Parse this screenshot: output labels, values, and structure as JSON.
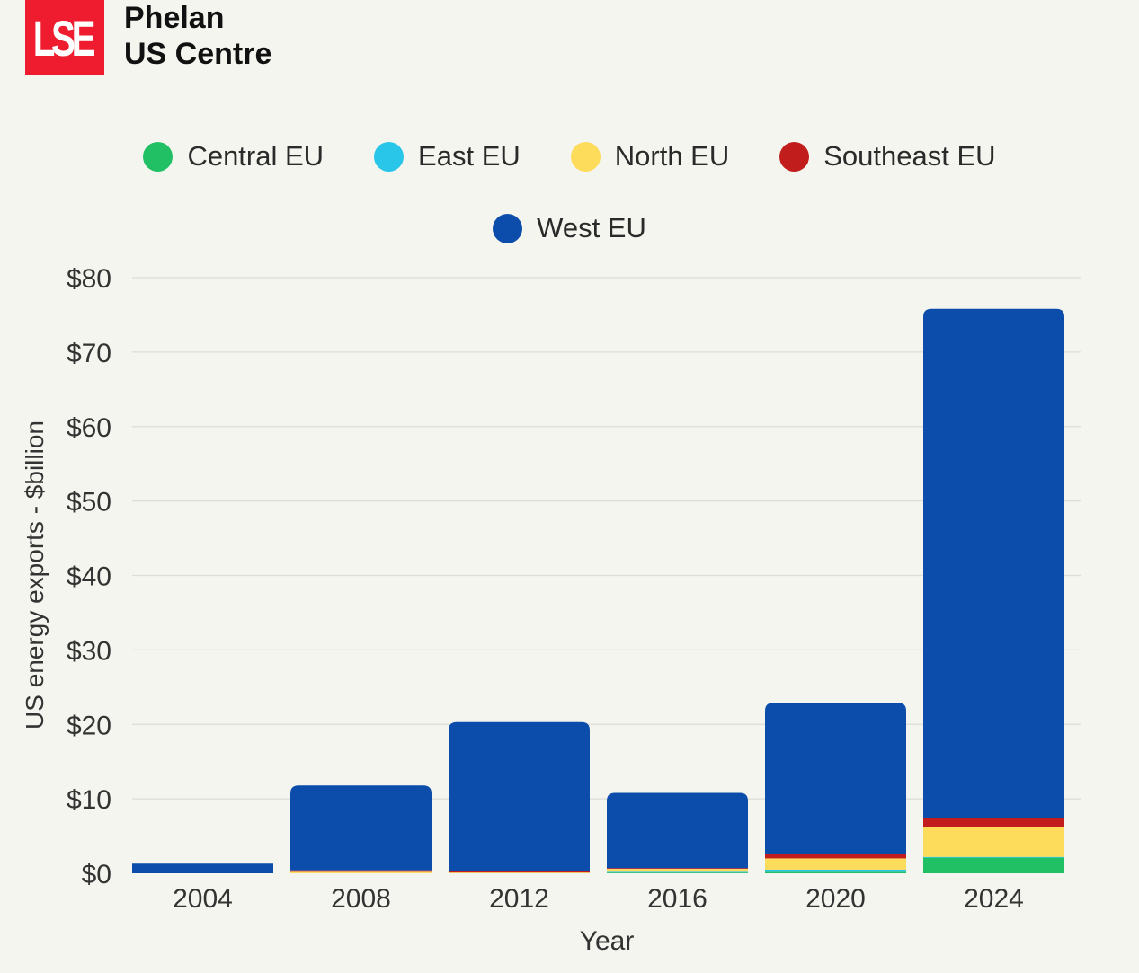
{
  "branding": {
    "logo_text": "LSE",
    "line1": "Phelan",
    "line2": "US Centre"
  },
  "colors": {
    "Central EU": "#22c064",
    "East EU": "#29c6ea",
    "North EU": "#fddc5c",
    "Southeast EU": "#c21d1d",
    "West EU": "#0c4dab"
  },
  "legend": {
    "row1": [
      "Central EU",
      "East EU",
      "North EU",
      "Southeast EU"
    ],
    "row2": [
      "West EU"
    ]
  },
  "chart_data": {
    "type": "bar",
    "stacked": true,
    "title": "",
    "xlabel": "Year",
    "ylabel": "US energy exports - $billion",
    "ylim": [
      0,
      80
    ],
    "yticks": [
      0,
      10,
      20,
      30,
      40,
      50,
      60,
      70,
      80
    ],
    "ytick_labels": [
      "$0",
      "$10",
      "$20",
      "$30",
      "$40",
      "$50",
      "$60",
      "$70",
      "$80"
    ],
    "grid": true,
    "categories": [
      "2004",
      "2008",
      "2012",
      "2016",
      "2020",
      "2024"
    ],
    "series": [
      {
        "name": "Central EU",
        "values": [
          0,
          0,
          0,
          0.1,
          0.2,
          2.1
        ]
      },
      {
        "name": "East EU",
        "values": [
          0,
          0,
          0,
          0.1,
          0.3,
          0.1
        ]
      },
      {
        "name": "North EU",
        "values": [
          0,
          0.2,
          0.1,
          0.4,
          1.5,
          4
        ]
      },
      {
        "name": "Southeast EU",
        "values": [
          0,
          0.2,
          0.2,
          0.1,
          0.6,
          1.2
        ]
      },
      {
        "name": "West EU",
        "values": [
          1.3,
          11.4,
          20,
          10.1,
          20.3,
          68.4
        ]
      }
    ]
  }
}
